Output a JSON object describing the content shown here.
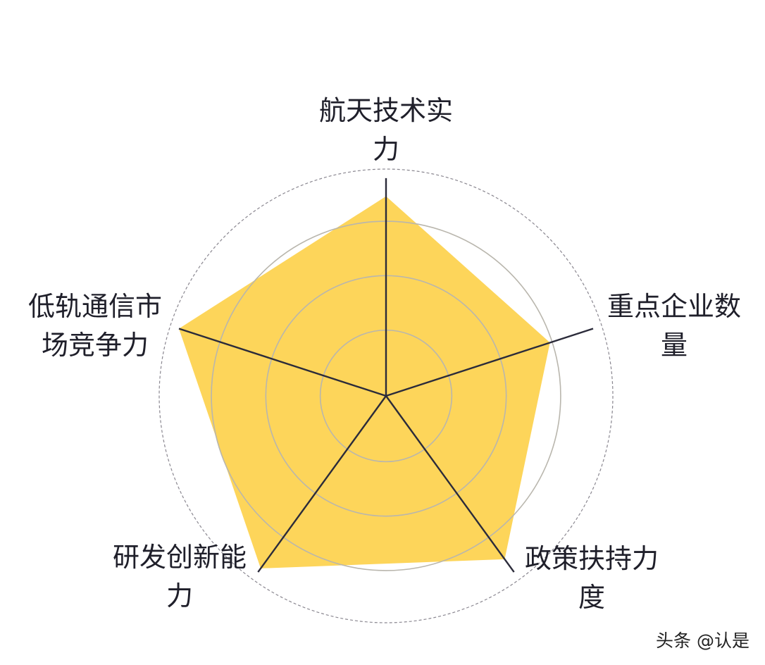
{
  "chart_data": {
    "type": "radar",
    "title": "",
    "axes": [
      "航天技术实力",
      "重点企业数量",
      "政策扶持力度",
      "研发创新能力",
      "低轨通信市场竞争力"
    ],
    "axis_label_lines": [
      [
        "航天技术实",
        "力"
      ],
      [
        "重点企业数",
        "量"
      ],
      [
        "政策扶持力",
        "度"
      ],
      [
        "研发创新能",
        "力"
      ],
      [
        "低轨通信市",
        "场竞争力"
      ]
    ],
    "max": 100,
    "values": [
      88,
      76,
      89,
      94,
      96
    ],
    "grid": true,
    "fill_color": "#FDD55A",
    "axis_color": "#2b2b3a"
  },
  "watermark": "头条 @认是"
}
